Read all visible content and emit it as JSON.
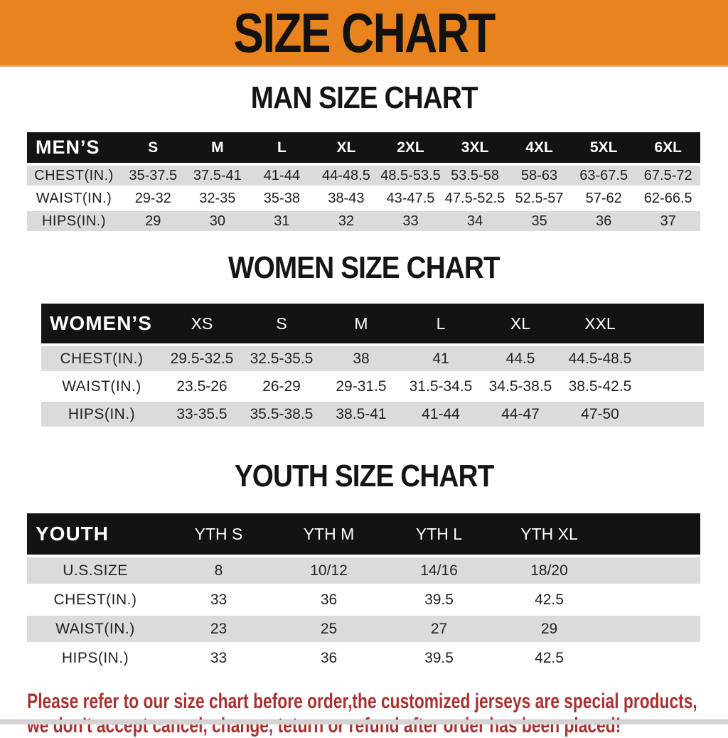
{
  "banner": {
    "title": "SIZE CHART"
  },
  "colors": {
    "banner_orange": "#E8831E",
    "bar_black": "#131313",
    "row_gray": "#DBDBDB",
    "note_red": "#A93231"
  },
  "sections": [
    {
      "title": "MAN SIZE CHART",
      "group_label": "MEN’S",
      "sizes": [
        "S",
        "M",
        "L",
        "XL",
        "2XL",
        "3XL",
        "4XL",
        "5XL",
        "6XL"
      ],
      "rows": [
        {
          "label": "CHEST(IN.)",
          "values": [
            "35-37.5",
            "37.5-41",
            "41-44",
            "44-48.5",
            "48.5-53.5",
            "53.5-58",
            "58-63",
            "63-67.5",
            "67.5-72"
          ]
        },
        {
          "label": "WAIST(IN.)",
          "values": [
            "29-32",
            "32-35",
            "35-38",
            "38-43",
            "43-47.5",
            "47.5-52.5",
            "52.5-57",
            "57-62",
            "62-66.5"
          ]
        },
        {
          "label": "HIPS(IN.)",
          "values": [
            "29",
            "30",
            "31",
            "32",
            "33",
            "34",
            "35",
            "36",
            "37"
          ]
        }
      ]
    },
    {
      "title": "WOMEN SIZE CHART",
      "group_label": "WOMEN’S",
      "sizes": [
        "XS",
        "S",
        "M",
        "L",
        "XL",
        "XXL"
      ],
      "rows": [
        {
          "label": "CHEST(IN.)",
          "values": [
            "29.5-32.5",
            "32.5-35.5",
            "38",
            "41",
            "44.5",
            "44.5-48.5"
          ]
        },
        {
          "label": "WAIST(IN.)",
          "values": [
            "23.5-26",
            "26-29",
            "29-31.5",
            "31.5-34.5",
            "34.5-38.5",
            "38.5-42.5"
          ]
        },
        {
          "label": "HIPS(IN.)",
          "values": [
            "33-35.5",
            "35.5-38.5",
            "38.5-41",
            "41-44",
            "44-47",
            "47-50"
          ]
        }
      ]
    },
    {
      "title": "YOUTH SIZE CHART",
      "group_label": "YOUTH",
      "sizes": [
        "YTH S",
        "YTH M",
        "YTH L",
        "YTH XL"
      ],
      "rows": [
        {
          "label": "U.S.SIZE",
          "values": [
            "8",
            "10/12",
            "14/16",
            "18/20"
          ]
        },
        {
          "label": "CHEST(IN.)",
          "values": [
            "33",
            "36",
            "39.5",
            "42.5"
          ]
        },
        {
          "label": "WAIST(IN.)",
          "values": [
            "23",
            "25",
            "27",
            "29"
          ]
        },
        {
          "label": "HIPS(IN.)",
          "values": [
            "33",
            "36",
            "39.5",
            "42.5"
          ]
        }
      ]
    }
  ],
  "footer": {
    "line1": "Please refer to our size chart before order,the customized jerseys are special products,",
    "line2": "we don't accept cancel, change, teturn or refund after order has been placed!"
  }
}
